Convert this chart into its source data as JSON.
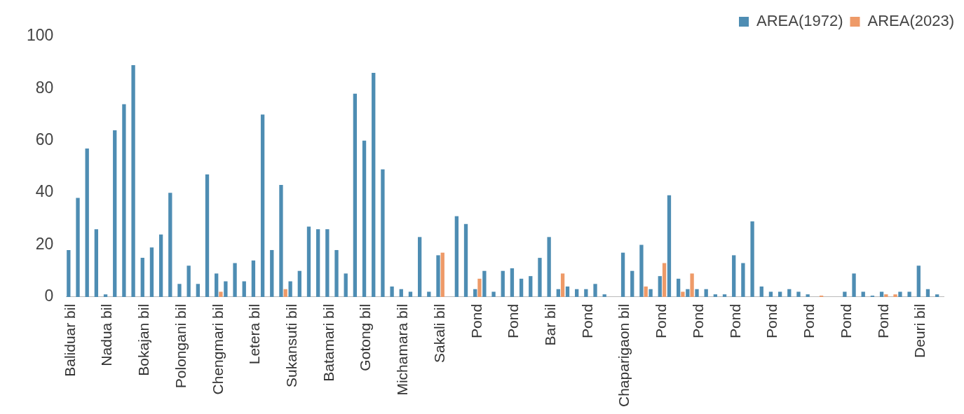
{
  "chart_data": {
    "type": "bar",
    "categories": [
      "Baliduar bil",
      null,
      null,
      null,
      "Nadua bil",
      null,
      null,
      null,
      "Bokajan bil",
      null,
      null,
      null,
      "Polongani bil",
      null,
      null,
      null,
      "Chengmari bil",
      null,
      null,
      null,
      "Letera bil",
      null,
      null,
      null,
      "Sukansuti bil",
      null,
      null,
      null,
      "Batamari bil",
      null,
      null,
      null,
      "Gotong bil",
      null,
      null,
      null,
      "Michamara bil",
      null,
      null,
      null,
      "Sakali bil",
      null,
      null,
      null,
      "Pond",
      null,
      null,
      null,
      "Pond",
      null,
      null,
      null,
      "Bar bil",
      null,
      null,
      null,
      "Pond",
      null,
      null,
      null,
      "Chaparigaon bil",
      null,
      null,
      null,
      "Pond",
      null,
      null,
      null,
      "Pond",
      null,
      null,
      null,
      "Pond",
      null,
      null,
      null,
      "Pond",
      null,
      null,
      null,
      "Pond",
      null,
      null,
      null,
      "Pond",
      null,
      null,
      null,
      "Pond",
      null,
      null,
      null,
      "Deuri bil",
      null,
      null
    ],
    "series": [
      {
        "name": "AREA(1972)",
        "color": "#4e8db3",
        "values": [
          18,
          38,
          57,
          26,
          1,
          64,
          74,
          89,
          15,
          19,
          24,
          40,
          5,
          12,
          5,
          47,
          9,
          6,
          13,
          6,
          14,
          70,
          18,
          43,
          6,
          10,
          27,
          26,
          26,
          18,
          9,
          78,
          60,
          86,
          49,
          4,
          3,
          2,
          23,
          2,
          16,
          0,
          31,
          28,
          3,
          10,
          2,
          10,
          11,
          7,
          8,
          15,
          23,
          3,
          4,
          3,
          3,
          5,
          1,
          0,
          17,
          10,
          20,
          3,
          8,
          39,
          7,
          3,
          3,
          3,
          1,
          1,
          16,
          13,
          29,
          4,
          2,
          2,
          3,
          2,
          1,
          0,
          0,
          0,
          2,
          9,
          2,
          0.5,
          2,
          0,
          2,
          2,
          12,
          3,
          1
        ]
      },
      {
        "name": "AREA(2023)",
        "color": "#ee9a68",
        "values": [
          0,
          0,
          0,
          0,
          0,
          0,
          0,
          0,
          0,
          0,
          0,
          0,
          0,
          0,
          0,
          0,
          2,
          0,
          0,
          0,
          0,
          0,
          0,
          3,
          0,
          0,
          0,
          0,
          0,
          0,
          0,
          0,
          0,
          0,
          0,
          0,
          0,
          0,
          0,
          0,
          17,
          0,
          0,
          0,
          7,
          0,
          0,
          0,
          0,
          0,
          0,
          0,
          0,
          9,
          0,
          0,
          0,
          0,
          0,
          0,
          0,
          0,
          4,
          0,
          13,
          0,
          2,
          9,
          0,
          0,
          0,
          0,
          0,
          0,
          0,
          0,
          0,
          0,
          0,
          0,
          0,
          0.5,
          0,
          0,
          0,
          0,
          0,
          0,
          1,
          1,
          0,
          0,
          0,
          0,
          0
        ]
      }
    ],
    "ylim": [
      0,
      100
    ],
    "yticks": [
      0,
      20,
      40,
      60,
      80,
      100
    ],
    "grid": false,
    "legend": "top right"
  }
}
